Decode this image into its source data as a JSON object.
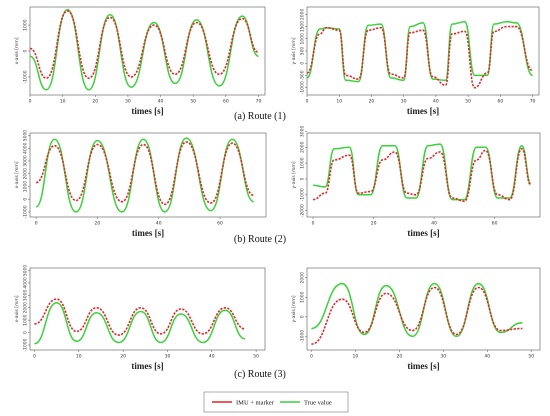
{
  "figure": {
    "rows": [
      {
        "caption": "(a) Route (1)"
      },
      {
        "caption": "(b) Route (2)"
      },
      {
        "caption": "(c) Route (3)"
      }
    ],
    "legend": [
      {
        "label": "IMU + marker",
        "color": "#e8222a"
      },
      {
        "label": "True value",
        "color": "#3ad13a"
      }
    ]
  },
  "chart_data": [
    {
      "type": "line",
      "panel": "route1-x",
      "xlabel": "times [s]",
      "ylabel": "x-axis [mm]",
      "xticks": [
        "0",
        "10",
        "20",
        "30",
        "40",
        "50",
        "60",
        "70"
      ],
      "yticks": [
        "-1000",
        "0",
        "1000"
      ],
      "xlim": [
        0,
        72
      ],
      "ylim": [
        -1700,
        1700
      ],
      "series": [
        {
          "name": "True value",
          "x": [
            0,
            5,
            11.5,
            18,
            24.5,
            31,
            38,
            44.5,
            51,
            58,
            65,
            70
          ],
          "y": [
            -200,
            -1500,
            1600,
            -1500,
            1400,
            -1400,
            1100,
            -1250,
            1200,
            -1350,
            1350,
            -200
          ]
        },
        {
          "name": "IMU + marker",
          "x": [
            0,
            5,
            11.5,
            18,
            24.5,
            31,
            38,
            44.5,
            51,
            58,
            65,
            70
          ],
          "y": [
            100,
            -1050,
            1550,
            -1050,
            1300,
            -1000,
            1000,
            -900,
            1100,
            -900,
            1250,
            -50
          ]
        }
      ]
    },
    {
      "type": "line",
      "panel": "route1-y",
      "xlabel": "times [s]",
      "ylabel": "y-axis [mm]",
      "xticks": [
        "0",
        "10",
        "20",
        "30",
        "40",
        "50",
        "60",
        "70"
      ],
      "yticks": [
        "-1000",
        "-500",
        "0",
        "500",
        "1000",
        "1500",
        "2000"
      ],
      "xlim": [
        0,
        72
      ],
      "ylim": [
        -1300,
        2300
      ],
      "series": [
        {
          "name": "True value",
          "x": [
            0,
            4,
            6,
            10,
            12,
            16,
            19,
            23,
            26,
            30,
            32,
            36,
            39,
            43,
            45,
            49,
            52,
            56,
            58,
            62,
            65,
            70
          ],
          "y": [
            -600,
            1400,
            1450,
            1400,
            -700,
            -750,
            1550,
            1600,
            -600,
            -700,
            1500,
            1650,
            -650,
            -700,
            1600,
            1700,
            -500,
            -500,
            1600,
            1700,
            1650,
            -500
          ]
        },
        {
          "name": "IMU + marker",
          "x": [
            0,
            4,
            6,
            10,
            12,
            16,
            19,
            23,
            26,
            30,
            32,
            36,
            39,
            43,
            45,
            49,
            52,
            56,
            58,
            62,
            65,
            70
          ],
          "y": [
            -400,
            1200,
            1450,
            1350,
            -500,
            -650,
            1350,
            1450,
            -450,
            -600,
            1250,
            1350,
            -550,
            -900,
            1200,
            1300,
            -1000,
            -400,
            1300,
            1500,
            1500,
            -300
          ]
        }
      ]
    },
    {
      "type": "line",
      "panel": "route2-x",
      "xlabel": "times [s]",
      "ylabel": "x-axis [mm]",
      "xticks": [
        "0",
        "20",
        "40",
        "60"
      ],
      "yticks": [
        "-1000",
        "0",
        "1000",
        "2000",
        "3000",
        "4000",
        "5000"
      ],
      "xlim": [
        -2,
        75
      ],
      "ylim": [
        -1400,
        5200
      ],
      "series": [
        {
          "name": "True value",
          "x": [
            0,
            6,
            13,
            20,
            28,
            35,
            42,
            49,
            57,
            64,
            71
          ],
          "y": [
            -600,
            4700,
            -1000,
            4600,
            -1000,
            4700,
            -1000,
            4800,
            -900,
            4700,
            -200
          ]
        },
        {
          "name": "IMU + marker",
          "x": [
            0,
            6,
            13,
            20,
            28,
            35,
            42,
            49,
            57,
            64,
            71
          ],
          "y": [
            1300,
            4200,
            -100,
            4300,
            -200,
            4300,
            -400,
            4500,
            -300,
            4400,
            300
          ]
        }
      ]
    },
    {
      "type": "line",
      "panel": "route2-y",
      "xlabel": "times [s]",
      "ylabel": "y-axis [mm]",
      "xticks": [
        "0",
        "20",
        "40",
        "60"
      ],
      "yticks": [
        "-2000",
        "-1000",
        "0",
        "1000",
        "2000",
        "3000"
      ],
      "xlim": [
        -2,
        75
      ],
      "ylim": [
        -2400,
        2900
      ],
      "series": [
        {
          "name": "True value",
          "x": [
            0,
            4,
            7,
            12,
            15,
            19,
            23,
            27,
            31,
            34,
            38,
            42,
            46,
            50,
            54,
            57,
            61,
            65,
            69,
            72
          ],
          "y": [
            -400,
            -500,
            1900,
            2000,
            -1000,
            -1000,
            2100,
            2100,
            -1200,
            -1200,
            2100,
            2200,
            -1300,
            -1300,
            2000,
            2000,
            -1200,
            -1200,
            2100,
            -300
          ]
        },
        {
          "name": "IMU + marker",
          "x": [
            0,
            4,
            7,
            12,
            15,
            19,
            23,
            27,
            31,
            34,
            38,
            42,
            46,
            50,
            54,
            57,
            61,
            65,
            69,
            72
          ],
          "y": [
            -1300,
            -900,
            1200,
            1500,
            -900,
            -800,
            1200,
            1700,
            -900,
            -1000,
            1300,
            1700,
            -1200,
            -1400,
            1200,
            1800,
            -1000,
            -1300,
            1900,
            -400
          ]
        }
      ]
    },
    {
      "type": "line",
      "panel": "route3-x",
      "xlabel": "times [s]",
      "ylabel": "x-axis [mm]",
      "xticks": [
        "0",
        "10",
        "20",
        "30",
        "40",
        "50"
      ],
      "yticks": [
        "-1000",
        "0",
        "1000",
        "2000",
        "3000",
        "4000",
        "5000"
      ],
      "xlim": [
        -1,
        52
      ],
      "ylim": [
        -1400,
        5200
      ],
      "series": [
        {
          "name": "True value",
          "x": [
            0,
            5,
            9.5,
            14,
            19,
            24,
            28.5,
            33,
            38,
            43,
            47.5
          ],
          "y": [
            -900,
            2400,
            -700,
            1600,
            -800,
            1700,
            -800,
            1500,
            -800,
            1800,
            -500
          ]
        },
        {
          "name": "IMU + marker",
          "x": [
            0,
            5,
            9.5,
            14,
            19,
            24,
            28.5,
            33,
            38,
            43,
            47.5
          ],
          "y": [
            700,
            2700,
            100,
            2000,
            -200,
            2000,
            -100,
            1900,
            -100,
            2000,
            300
          ]
        }
      ]
    },
    {
      "type": "line",
      "panel": "route3-y",
      "xlabel": "times [s]",
      "ylabel": "y-axis [mm]",
      "xticks": [
        "0",
        "10",
        "20",
        "30",
        "40",
        "50"
      ],
      "yticks": [
        "-1000",
        "0",
        "1000",
        "2000"
      ],
      "xlim": [
        -1,
        52
      ],
      "ylim": [
        -1700,
        2500
      ],
      "series": [
        {
          "name": "True value",
          "x": [
            0,
            7,
            12,
            17,
            23,
            28,
            33,
            38,
            43,
            48
          ],
          "y": [
            -600,
            1700,
            -900,
            1600,
            -1000,
            1700,
            -1000,
            1700,
            -800,
            -300
          ]
        },
        {
          "name": "IMU + marker",
          "x": [
            0,
            7,
            12,
            17,
            23,
            28,
            33,
            38,
            43,
            48
          ],
          "y": [
            -1400,
            900,
            -800,
            1200,
            -700,
            1500,
            -900,
            1500,
            -700,
            -600
          ]
        }
      ]
    }
  ]
}
